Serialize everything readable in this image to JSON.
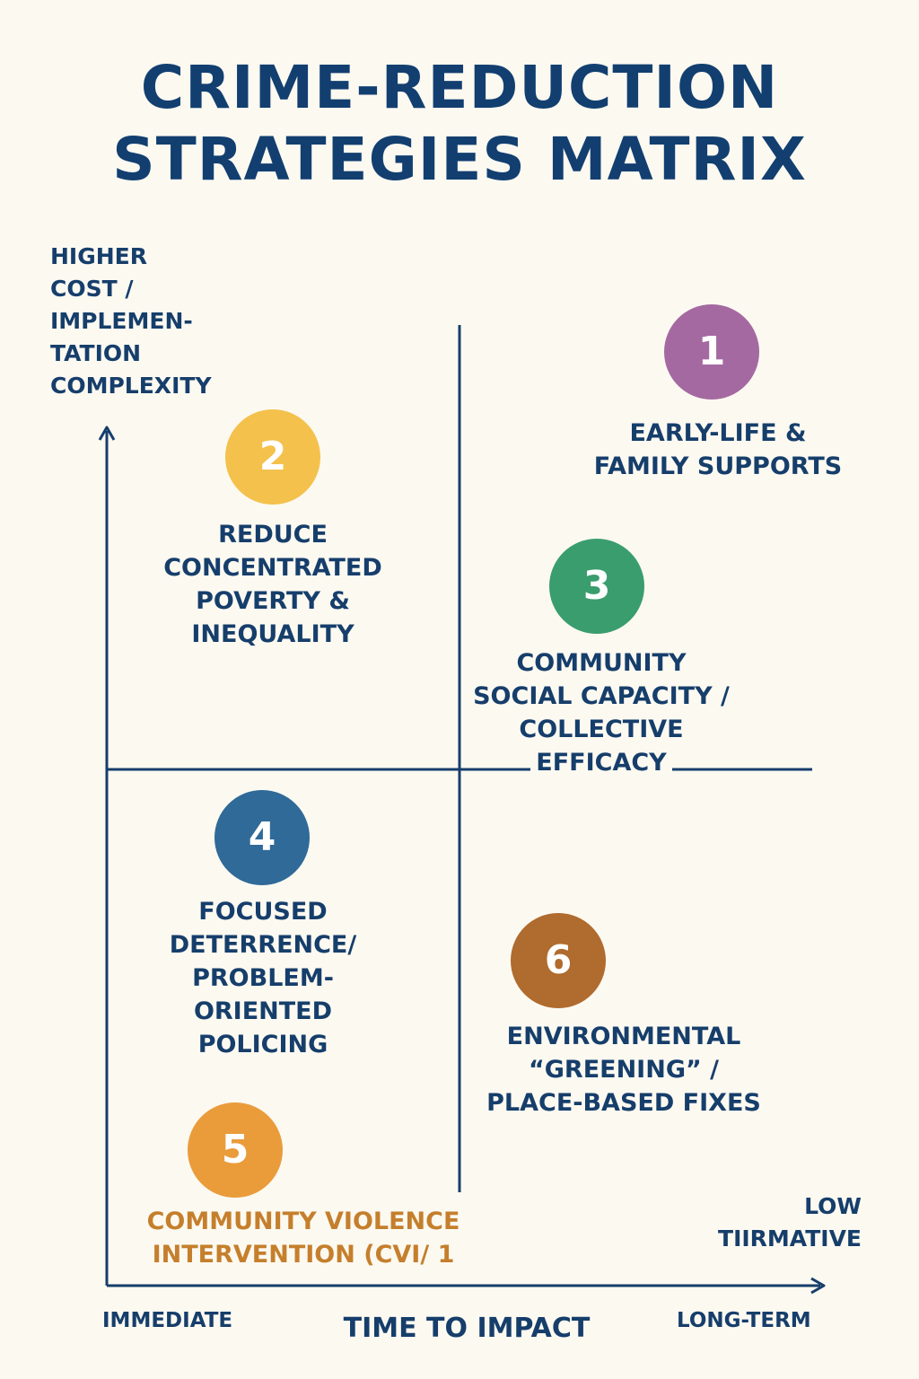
{
  "title": {
    "line1": "CRIME-REDUCTION",
    "line2": "STRATEGIES MATRIX"
  },
  "y_axis": {
    "label_lines": [
      "HIGHER",
      "COST /",
      "IMPLEMEN-",
      "TATION",
      "COMPLEXITY"
    ]
  },
  "x_axis": {
    "label": "TIME TO IMPACT",
    "start": "IMMEDIATE",
    "end": "LONG-TERM"
  },
  "corner_label": {
    "lines": [
      "LOW",
      "TIIRMATIVE"
    ]
  },
  "strategies": [
    {
      "number": "1",
      "color": "#a569a1",
      "label_lines": [
        "EARLY-LIFE &",
        "FAMILY SUPPORTS"
      ]
    },
    {
      "number": "2",
      "color": "#f4c14c",
      "label_lines": [
        "REDUCE",
        "CONCENTRATED",
        "POVERTY &",
        "INEQUALITY"
      ]
    },
    {
      "number": "3",
      "color": "#3a9d6e",
      "label_lines": [
        "COMMUNITY",
        "SOCIAL CAPACITY /",
        "COLLECTIVE",
        "EFFICACY"
      ]
    },
    {
      "number": "4",
      "color": "#2f6a98",
      "label_lines": [
        "FOCUSED",
        "DETERRENCE/",
        "PROBLEM-",
        "ORIENTED",
        "POLICING"
      ]
    },
    {
      "number": "5",
      "color": "#ea9c3b",
      "label_lines": [
        "COMMUNITY VIOLENCE",
        "INTERVENTION (CVI/ 1"
      ]
    },
    {
      "number": "6",
      "color": "#b06b2e",
      "label_lines": [
        "ENVIRONMENTAL",
        "“GREENING” /",
        "PLACE-BASED FIXES"
      ]
    }
  ],
  "colors": {
    "ink": "#163e6b",
    "background": "#fcf9f1",
    "cvi_label": "#c57f2c"
  }
}
